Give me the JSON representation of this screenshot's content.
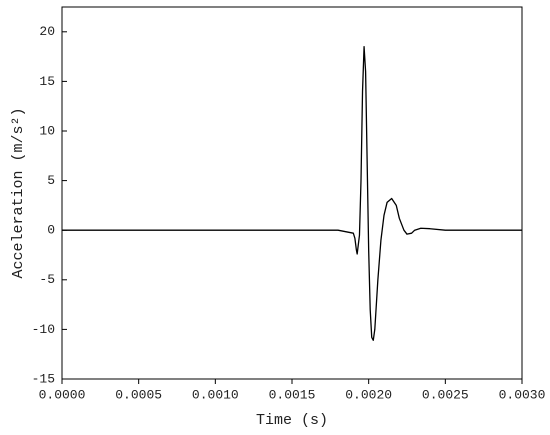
{
  "chart_data": {
    "type": "line",
    "x_label": "Time (s)",
    "y_label": "Acceleration (m/s²)",
    "x": [
      0,
      0.0018,
      0.0019,
      0.00191,
      0.00192,
      0.001925,
      0.00194,
      0.00195,
      0.00196,
      0.00197,
      0.00198,
      0.00199,
      0.002,
      0.00201,
      0.00202,
      0.00203,
      0.00204,
      0.00206,
      0.00208,
      0.0021,
      0.00212,
      0.00215,
      0.00218,
      0.0022,
      0.00223,
      0.00225,
      0.00228,
      0.0023,
      0.00234,
      0.0024,
      0.0025,
      0.003
    ],
    "series": [
      {
        "color": "#000000",
        "values": [
          0,
          0,
          -0.3,
          -0.8,
          -2.0,
          -2.4,
          -0.5,
          5,
          14,
          18.5,
          16,
          7,
          -2,
          -8,
          -10.8,
          -11.1,
          -10,
          -5,
          -1,
          1.5,
          2.8,
          3.2,
          2.5,
          1.2,
          0,
          -0.4,
          -0.3,
          0,
          0.2,
          0.15,
          0,
          0
        ]
      }
    ],
    "xlim": [
      0,
      0.003
    ],
    "ylim": [
      -15,
      22.5
    ],
    "xticks": [
      {
        "value": 0,
        "label": "0.0000"
      },
      {
        "value": 0.0005,
        "label": "0.0005"
      },
      {
        "value": 0.001,
        "label": "0.0010"
      },
      {
        "value": 0.0015,
        "label": "0.0015"
      },
      {
        "value": 0.002,
        "label": "0.0020"
      },
      {
        "value": 0.0025,
        "label": "0.0025"
      },
      {
        "value": 0.003,
        "label": "0.0030"
      }
    ],
    "yticks": [
      -15,
      -10,
      -5,
      0,
      5,
      10,
      15,
      20
    ],
    "grid": false
  }
}
